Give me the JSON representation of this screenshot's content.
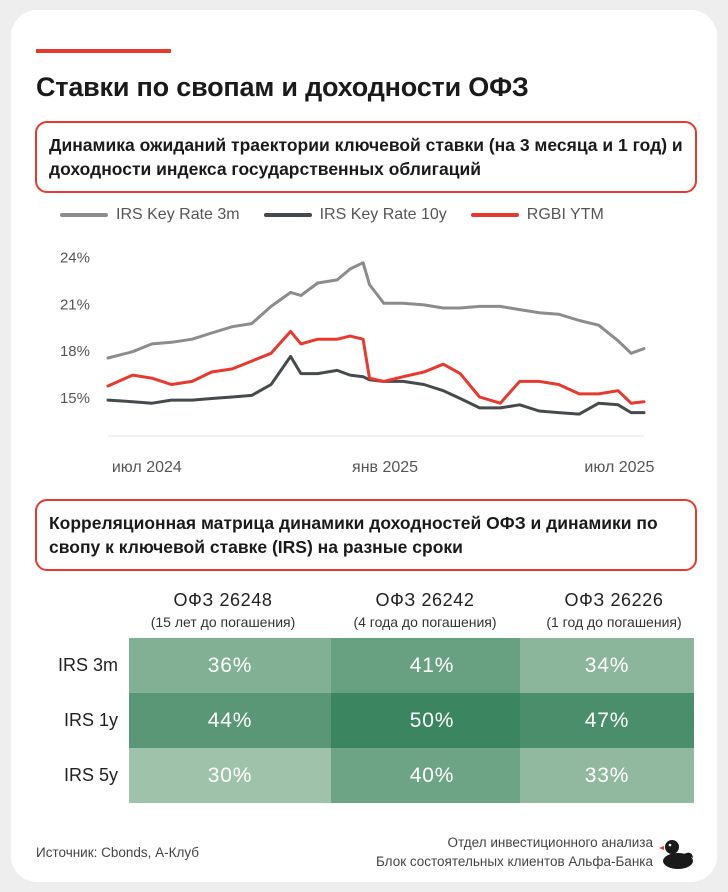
{
  "header": {
    "title": "Ставки по свопам и доходности ОФЗ"
  },
  "section1": {
    "title": "Динамика ожиданий траектории ключевой ставки (на 3 месяца и 1 год) и доходности индекса государственных облигаций"
  },
  "section2": {
    "title": "Корреляционная матрица динамики доходностей ОФЗ и динамики по свопу к ключевой ставке (IRS) на разные сроки"
  },
  "chart_data": [
    {
      "type": "line",
      "x": [
        "2024-06-01",
        "2024-06-20",
        "2024-07-05",
        "2024-07-20",
        "2024-08-05",
        "2024-08-20",
        "2024-09-05",
        "2024-09-20",
        "2024-10-05",
        "2024-10-20",
        "2024-10-28",
        "2024-11-10",
        "2024-11-25",
        "2024-12-05",
        "2024-12-15",
        "2024-12-20",
        "2024-12-31",
        "2025-01-15",
        "2025-01-31",
        "2025-02-15",
        "2025-02-28",
        "2025-03-15",
        "2025-03-31",
        "2025-04-15",
        "2025-04-30",
        "2025-05-15",
        "2025-05-31",
        "2025-06-15",
        "2025-06-30",
        "2025-07-10",
        "2025-07-20"
      ],
      "series": [
        {
          "name": "IRS Key Rate 3m",
          "color": "#8c8c8c",
          "values": [
            17.5,
            17.9,
            18.4,
            18.5,
            18.7,
            19.1,
            19.5,
            19.7,
            20.8,
            21.7,
            21.5,
            22.3,
            22.5,
            23.2,
            23.6,
            22.2,
            21.0,
            21.0,
            20.9,
            20.7,
            20.7,
            20.8,
            20.8,
            20.6,
            20.4,
            20.3,
            19.9,
            19.6,
            18.6,
            17.8,
            18.1
          ]
        },
        {
          "name": "IRS Key Rate 10y",
          "color": "#454a4c",
          "values": [
            14.8,
            14.7,
            14.6,
            14.8,
            14.8,
            14.9,
            15.0,
            15.1,
            15.8,
            17.6,
            16.5,
            16.5,
            16.7,
            16.4,
            16.3,
            16.1,
            16.0,
            16.0,
            15.8,
            15.4,
            14.9,
            14.3,
            14.3,
            14.5,
            14.1,
            14.0,
            13.9,
            14.6,
            14.5,
            14.0,
            14.0
          ]
        },
        {
          "name": "RGBI YTM",
          "color": "#e8392e",
          "values": [
            15.7,
            16.4,
            16.2,
            15.8,
            16.0,
            16.6,
            16.8,
            17.3,
            17.8,
            19.2,
            18.4,
            18.7,
            18.7,
            18.9,
            18.7,
            16.2,
            16.0,
            16.3,
            16.6,
            17.1,
            16.5,
            15.0,
            14.6,
            16.0,
            16.0,
            15.8,
            15.2,
            15.2,
            15.4,
            14.6,
            14.7
          ]
        }
      ],
      "xticks": [
        "июл 2024",
        "янв 2025",
        "июл 2025"
      ],
      "yticks": [
        "24%",
        "21%",
        "18%",
        "15%"
      ],
      "ylim": [
        12.5,
        24.8
      ],
      "legend": "top"
    },
    {
      "type": "heatmap",
      "columns": [
        {
          "name": "ОФЗ 26248",
          "sub": "(15 лет до погашения)"
        },
        {
          "name": "ОФЗ 26242",
          "sub": "(4 года до погашения)"
        },
        {
          "name": "ОФЗ 26226",
          "sub": "(1 год до погашения)"
        }
      ],
      "rows": [
        {
          "name": "IRS 3m",
          "values": [
            "36%",
            "41%",
            "34%"
          ]
        },
        {
          "name": "IRS 1y",
          "values": [
            "44%",
            "50%",
            "47%"
          ]
        },
        {
          "name": "IRS 5y",
          "values": [
            "30%",
            "40%",
            "33%"
          ]
        }
      ],
      "colors": {
        "low": "#9fc2ab",
        "high": "#3b8560",
        "min": 30,
        "max": 50
      }
    }
  ],
  "footer": {
    "source": "Источник: Cbonds, А-Клуб",
    "dept_line1": "Отдел инвестиционного анализа",
    "dept_line2": "Блок состоятельных клиентов Альфа-Банка"
  },
  "icons": {
    "logo": "duck-icon"
  }
}
